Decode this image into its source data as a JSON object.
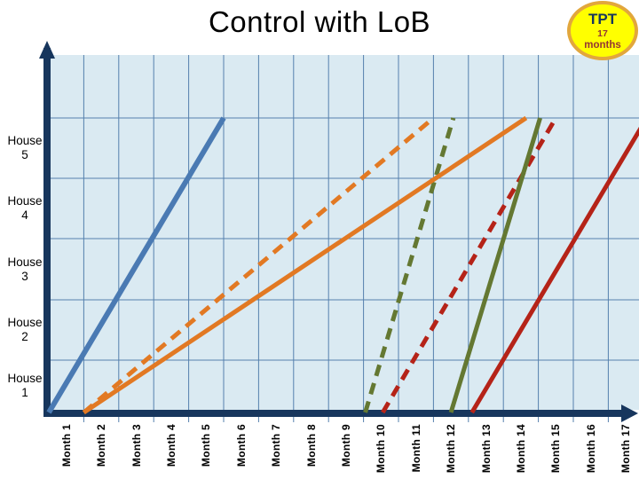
{
  "title": "Control with LoB",
  "badge": {
    "title": "TPT",
    "value": "17",
    "unit": "months"
  },
  "colors": {
    "plot_bg": "#daeaf2",
    "gridline": "#5580ad",
    "axis": "#17365d",
    "text": "#000000",
    "badge_fill": "#ffff00",
    "badge_border": "#e2a73c",
    "badge_title": "#17365d",
    "badge_value": "#943634"
  },
  "chart_data": {
    "type": "line",
    "title": "Control with LoB",
    "subtitle_badge": "TPT 17 months",
    "grid": true,
    "legend": "none",
    "x_axis": {
      "range": [
        0,
        17
      ],
      "unit": "months",
      "categories": [
        "Month 1",
        "Month 2",
        "Month 3",
        "Month 4",
        "Month 5",
        "Month 6",
        "Month 7",
        "Month 8",
        "Month 9",
        "Month 10",
        "Month 11",
        "Month 12",
        "Month 13",
        "Month 14",
        "Month 15",
        "Month 16",
        "Month 17"
      ]
    },
    "y_axis": {
      "range": [
        0,
        5
      ],
      "unit": "houses",
      "categories_top_to_bottom": [
        "House 5",
        "House 4",
        "House 3",
        "House 2",
        "House 1"
      ]
    },
    "series": [
      {
        "name": "orange-dashed",
        "color": "#e27923",
        "style": "dashed",
        "from": [
          1,
          0
        ],
        "to": [
          11,
          5
        ]
      },
      {
        "name": "green-dashed",
        "color": "#647832",
        "style": "dashed",
        "from": [
          9.05,
          0
        ],
        "to": [
          11.57,
          5
        ]
      },
      {
        "name": "red-dashed",
        "color": "#b52318",
        "style": "dashed",
        "from": [
          9.55,
          0
        ],
        "to": [
          14.5,
          5
        ]
      },
      {
        "name": "blue-solid",
        "color": "#4a7ab3",
        "style": "solid",
        "from": [
          0,
          0
        ],
        "to": [
          5,
          5
        ]
      },
      {
        "name": "orange-solid",
        "color": "#e27923",
        "style": "solid",
        "from": [
          1,
          0
        ],
        "to": [
          13.65,
          5
        ]
      },
      {
        "name": "green-solid",
        "color": "#647832",
        "style": "solid",
        "from": [
          11.5,
          0
        ],
        "to": [
          14.05,
          5
        ]
      },
      {
        "name": "red-solid",
        "color": "#b52318",
        "style": "solid",
        "from": [
          12.1,
          0
        ],
        "to": [
          17.1,
          5
        ]
      }
    ]
  }
}
